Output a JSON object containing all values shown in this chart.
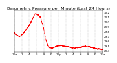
{
  "title": "Barometric Pressure per Minute (Last 24 Hours)",
  "background_color": "#ffffff",
  "line_color": "#ff0000",
  "grid_color": "#c0c0c0",
  "title_fontsize": 4.5,
  "tick_fontsize": 3.0,
  "num_points": 1440,
  "ctrl_x": [
    0,
    30,
    80,
    130,
    180,
    230,
    290,
    340,
    390,
    430,
    480,
    520,
    560,
    620,
    680,
    750,
    820,
    900,
    980,
    1060,
    1150,
    1250,
    1350,
    1439
  ],
  "ctrl_y": [
    29.78,
    29.74,
    29.7,
    29.75,
    29.82,
    29.92,
    30.05,
    30.18,
    30.15,
    30.08,
    29.85,
    29.62,
    29.48,
    29.46,
    29.5,
    29.52,
    29.5,
    29.48,
    29.46,
    29.48,
    29.5,
    29.48,
    29.45,
    29.43
  ],
  "noise_std": 0.006,
  "ylim": [
    29.38,
    30.25
  ],
  "yticks": [
    29.4,
    29.5,
    29.6,
    29.7,
    29.8,
    29.9,
    30.0,
    30.1,
    30.2
  ],
  "x_tick_positions": [
    0,
    120,
    240,
    360,
    480,
    600,
    720,
    840,
    960,
    1080,
    1200,
    1320,
    1439
  ],
  "x_tick_labels": [
    "12a",
    "2",
    "4",
    "6",
    "8",
    "10",
    "12p",
    "2",
    "4",
    "6",
    "8",
    "10",
    "12a"
  ],
  "grid_positions": [
    0,
    120,
    240,
    360,
    480,
    600,
    720,
    840,
    960,
    1080,
    1200,
    1320,
    1439
  ]
}
